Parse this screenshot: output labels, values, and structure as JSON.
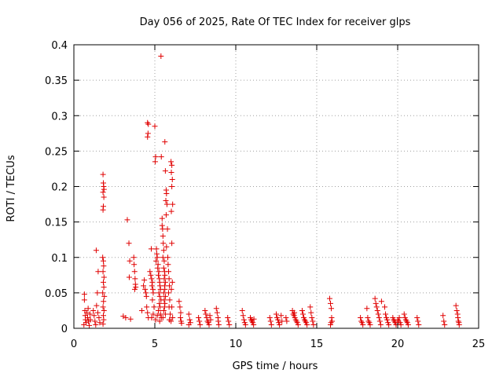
{
  "chart_data": {
    "type": "scatter",
    "title": "Day 056 of 2025, Rate Of TEC Index for receiver glps",
    "xlabel": "GPS time / hours",
    "ylabel": "ROTI / TECUs",
    "xlim": [
      0,
      25
    ],
    "ylim": [
      0,
      0.4
    ],
    "xticks": [
      0,
      5,
      10,
      15,
      20,
      25
    ],
    "yticks": [
      0,
      0.05,
      0.1,
      0.15,
      0.2,
      0.25,
      0.3,
      0.35,
      0.4
    ],
    "xtick_labels": [
      "0",
      "5",
      "10",
      "15",
      "20",
      "25"
    ],
    "ytick_labels": [
      "0",
      "0.05",
      "0.1",
      "0.15",
      "0.2",
      "0.25",
      "0.3",
      "0.35",
      "0.4"
    ],
    "grid": true,
    "marker": "+",
    "marker_color": "#e00000",
    "series": [
      {
        "name": "ROTI",
        "points": [
          [
            0.65,
            0.048
          ],
          [
            0.65,
            0.04
          ],
          [
            0.68,
            0.025
          ],
          [
            0.7,
            0.018
          ],
          [
            0.72,
            0.012
          ],
          [
            0.75,
            0.008
          ],
          [
            0.62,
            0.005
          ],
          [
            0.8,
            0.022
          ],
          [
            0.85,
            0.015
          ],
          [
            0.9,
            0.01
          ],
          [
            0.95,
            0.004
          ],
          [
            1.0,
            0.02
          ],
          [
            1.02,
            0.012
          ],
          [
            0.88,
            0.028
          ],
          [
            1.2,
            0.025
          ],
          [
            1.25,
            0.018
          ],
          [
            1.3,
            0.01
          ],
          [
            1.35,
            0.005
          ],
          [
            1.4,
            0.032
          ],
          [
            1.45,
            0.05
          ],
          [
            1.5,
            0.08
          ],
          [
            1.38,
            0.11
          ],
          [
            1.55,
            0.015
          ],
          [
            1.6,
            0.008
          ],
          [
            1.48,
            0.022
          ],
          [
            1.8,
            0.217
          ],
          [
            1.82,
            0.205
          ],
          [
            1.84,
            0.2
          ],
          [
            1.86,
            0.196
          ],
          [
            1.8,
            0.192
          ],
          [
            1.85,
            0.185
          ],
          [
            1.82,
            0.172
          ],
          [
            1.8,
            0.167
          ],
          [
            1.78,
            0.1
          ],
          [
            1.82,
            0.095
          ],
          [
            1.84,
            0.088
          ],
          [
            1.8,
            0.08
          ],
          [
            1.86,
            0.072
          ],
          [
            1.82,
            0.065
          ],
          [
            1.85,
            0.058
          ],
          [
            1.78,
            0.05
          ],
          [
            1.88,
            0.045
          ],
          [
            1.83,
            0.038
          ],
          [
            1.8,
            0.03
          ],
          [
            1.86,
            0.025
          ],
          [
            1.82,
            0.018
          ],
          [
            1.84,
            0.012
          ],
          [
            1.8,
            0.006
          ],
          [
            3.05,
            0.017
          ],
          [
            3.2,
            0.015
          ],
          [
            3.3,
            0.153
          ],
          [
            3.4,
            0.12
          ],
          [
            3.45,
            0.095
          ],
          [
            3.42,
            0.072
          ],
          [
            3.5,
            0.013
          ],
          [
            3.7,
            0.1
          ],
          [
            3.72,
            0.09
          ],
          [
            3.75,
            0.08
          ],
          [
            3.78,
            0.07
          ],
          [
            3.8,
            0.062
          ],
          [
            3.76,
            0.055
          ],
          [
            3.82,
            0.058
          ],
          [
            4.2,
            0.025
          ],
          [
            4.3,
            0.06
          ],
          [
            4.35,
            0.068
          ],
          [
            4.4,
            0.055
          ],
          [
            4.45,
            0.05
          ],
          [
            4.48,
            0.045
          ],
          [
            4.5,
            0.03
          ],
          [
            4.55,
            0.022
          ],
          [
            4.6,
            0.015
          ],
          [
            4.55,
            0.29
          ],
          [
            4.6,
            0.288
          ],
          [
            4.58,
            0.275
          ],
          [
            4.55,
            0.27
          ],
          [
            4.7,
            0.08
          ],
          [
            4.75,
            0.075
          ],
          [
            4.8,
            0.07
          ],
          [
            4.85,
            0.065
          ],
          [
            4.82,
            0.06
          ],
          [
            4.88,
            0.055
          ],
          [
            4.78,
            0.112
          ],
          [
            4.9,
            0.05
          ],
          [
            4.85,
            0.04
          ],
          [
            4.95,
            0.03
          ],
          [
            4.9,
            0.02
          ],
          [
            4.8,
            0.015
          ],
          [
            5.0,
            0.285
          ],
          [
            5.05,
            0.242
          ],
          [
            5.02,
            0.235
          ],
          [
            5.1,
            0.112
          ],
          [
            5.12,
            0.105
          ],
          [
            5.15,
            0.1
          ],
          [
            5.08,
            0.095
          ],
          [
            5.2,
            0.09
          ],
          [
            5.18,
            0.085
          ],
          [
            5.25,
            0.08
          ],
          [
            5.22,
            0.075
          ],
          [
            5.28,
            0.07
          ],
          [
            5.3,
            0.065
          ],
          [
            5.32,
            0.06
          ],
          [
            5.35,
            0.055
          ],
          [
            5.25,
            0.05
          ],
          [
            5.3,
            0.045
          ],
          [
            5.38,
            0.04
          ],
          [
            5.28,
            0.035
          ],
          [
            5.32,
            0.03
          ],
          [
            5.22,
            0.025
          ],
          [
            5.35,
            0.02
          ],
          [
            5.4,
            0.015
          ],
          [
            5.3,
            0.01
          ],
          [
            5.15,
            0.018
          ],
          [
            5.05,
            0.012
          ],
          [
            5.38,
            0.384
          ],
          [
            5.4,
            0.242
          ],
          [
            5.45,
            0.155
          ],
          [
            5.45,
            0.145
          ],
          [
            5.48,
            0.14
          ],
          [
            5.5,
            0.13
          ],
          [
            5.52,
            0.12
          ],
          [
            5.55,
            0.11
          ],
          [
            5.5,
            0.1
          ],
          [
            5.58,
            0.095
          ],
          [
            5.55,
            0.085
          ],
          [
            5.6,
            0.08
          ],
          [
            5.62,
            0.075
          ],
          [
            5.58,
            0.07
          ],
          [
            5.65,
            0.065
          ],
          [
            5.6,
            0.06
          ],
          [
            5.62,
            0.055
          ],
          [
            5.55,
            0.05
          ],
          [
            5.65,
            0.045
          ],
          [
            5.58,
            0.04
          ],
          [
            5.62,
            0.035
          ],
          [
            5.6,
            0.03
          ],
          [
            5.55,
            0.025
          ],
          [
            5.65,
            0.02
          ],
          [
            5.5,
            0.015
          ],
          [
            5.62,
            0.263
          ],
          [
            5.65,
            0.222
          ],
          [
            5.7,
            0.195
          ],
          [
            5.72,
            0.19
          ],
          [
            5.68,
            0.18
          ],
          [
            5.75,
            0.175
          ],
          [
            5.7,
            0.16
          ],
          [
            5.78,
            0.14
          ],
          [
            5.72,
            0.115
          ],
          [
            5.8,
            0.1
          ],
          [
            5.82,
            0.09
          ],
          [
            5.85,
            0.08
          ],
          [
            5.88,
            0.07
          ],
          [
            5.9,
            0.06
          ],
          [
            5.85,
            0.05
          ],
          [
            5.92,
            0.04
          ],
          [
            5.88,
            0.03
          ],
          [
            5.95,
            0.02
          ],
          [
            5.9,
            0.012
          ],
          [
            6.0,
            0.235
          ],
          [
            6.05,
            0.23
          ],
          [
            6.02,
            0.22
          ],
          [
            6.08,
            0.21
          ],
          [
            6.05,
            0.2
          ],
          [
            6.1,
            0.175
          ],
          [
            6.02,
            0.165
          ],
          [
            6.05,
            0.12
          ],
          [
            6.08,
            0.065
          ],
          [
            6.02,
            0.055
          ],
          [
            6.05,
            0.03
          ],
          [
            6.1,
            0.015
          ],
          [
            6.0,
            0.01
          ],
          [
            6.5,
            0.038
          ],
          [
            6.55,
            0.03
          ],
          [
            6.6,
            0.022
          ],
          [
            6.58,
            0.015
          ],
          [
            6.62,
            0.01
          ],
          [
            6.65,
            0.007
          ],
          [
            7.1,
            0.02
          ],
          [
            7.15,
            0.012
          ],
          [
            7.2,
            0.008
          ],
          [
            7.1,
            0.005
          ],
          [
            7.7,
            0.015
          ],
          [
            7.75,
            0.01
          ],
          [
            7.8,
            0.005
          ],
          [
            8.1,
            0.025
          ],
          [
            8.15,
            0.02
          ],
          [
            8.2,
            0.015
          ],
          [
            8.25,
            0.01
          ],
          [
            8.3,
            0.008
          ],
          [
            8.35,
            0.005
          ],
          [
            8.4,
            0.018
          ],
          [
            8.45,
            0.012
          ],
          [
            8.8,
            0.028
          ],
          [
            8.85,
            0.022
          ],
          [
            8.9,
            0.015
          ],
          [
            8.92,
            0.01
          ],
          [
            8.95,
            0.005
          ],
          [
            9.5,
            0.015
          ],
          [
            9.55,
            0.01
          ],
          [
            9.6,
            0.005
          ],
          [
            10.4,
            0.025
          ],
          [
            10.45,
            0.018
          ],
          [
            10.5,
            0.012
          ],
          [
            10.55,
            0.008
          ],
          [
            10.6,
            0.005
          ],
          [
            10.9,
            0.015
          ],
          [
            10.95,
            0.012
          ],
          [
            11.0,
            0.01
          ],
          [
            11.05,
            0.008
          ],
          [
            11.1,
            0.005
          ],
          [
            11.12,
            0.013
          ],
          [
            12.1,
            0.015
          ],
          [
            12.15,
            0.01
          ],
          [
            12.2,
            0.005
          ],
          [
            12.5,
            0.02
          ],
          [
            12.55,
            0.015
          ],
          [
            12.6,
            0.012
          ],
          [
            12.65,
            0.008
          ],
          [
            12.7,
            0.005
          ],
          [
            12.8,
            0.018
          ],
          [
            12.85,
            0.01
          ],
          [
            13.1,
            0.015
          ],
          [
            13.15,
            0.01
          ],
          [
            13.5,
            0.025
          ],
          [
            13.55,
            0.02
          ],
          [
            13.6,
            0.018
          ],
          [
            13.65,
            0.015
          ],
          [
            13.7,
            0.012
          ],
          [
            13.75,
            0.01
          ],
          [
            13.8,
            0.008
          ],
          [
            13.85,
            0.005
          ],
          [
            13.62,
            0.022
          ],
          [
            14.1,
            0.025
          ],
          [
            14.15,
            0.02
          ],
          [
            14.2,
            0.015
          ],
          [
            14.25,
            0.012
          ],
          [
            14.3,
            0.01
          ],
          [
            14.35,
            0.008
          ],
          [
            14.4,
            0.005
          ],
          [
            14.6,
            0.03
          ],
          [
            14.65,
            0.022
          ],
          [
            14.7,
            0.015
          ],
          [
            14.75,
            0.01
          ],
          [
            14.8,
            0.005
          ],
          [
            15.8,
            0.042
          ],
          [
            15.85,
            0.035
          ],
          [
            15.9,
            0.028
          ],
          [
            15.92,
            0.015
          ],
          [
            15.95,
            0.01
          ],
          [
            15.88,
            0.008
          ],
          [
            15.85,
            0.005
          ],
          [
            17.7,
            0.015
          ],
          [
            17.75,
            0.01
          ],
          [
            17.8,
            0.008
          ],
          [
            17.85,
            0.005
          ],
          [
            18.1,
            0.028
          ],
          [
            18.15,
            0.015
          ],
          [
            18.2,
            0.01
          ],
          [
            18.25,
            0.008
          ],
          [
            18.3,
            0.005
          ],
          [
            18.6,
            0.042
          ],
          [
            18.65,
            0.035
          ],
          [
            18.7,
            0.03
          ],
          [
            18.75,
            0.025
          ],
          [
            18.8,
            0.02
          ],
          [
            18.85,
            0.015
          ],
          [
            18.9,
            0.01
          ],
          [
            18.95,
            0.005
          ],
          [
            19.0,
            0.038
          ],
          [
            19.2,
            0.03
          ],
          [
            19.25,
            0.02
          ],
          [
            19.3,
            0.015
          ],
          [
            19.35,
            0.012
          ],
          [
            19.4,
            0.008
          ],
          [
            19.45,
            0.005
          ],
          [
            19.7,
            0.015
          ],
          [
            19.75,
            0.012
          ],
          [
            19.8,
            0.01
          ],
          [
            19.85,
            0.008
          ],
          [
            19.9,
            0.005
          ],
          [
            20.0,
            0.012
          ],
          [
            20.05,
            0.01
          ],
          [
            20.1,
            0.015
          ],
          [
            20.15,
            0.008
          ],
          [
            20.2,
            0.005
          ],
          [
            20.4,
            0.02
          ],
          [
            20.45,
            0.015
          ],
          [
            20.5,
            0.012
          ],
          [
            20.55,
            0.01
          ],
          [
            20.6,
            0.008
          ],
          [
            20.65,
            0.005
          ],
          [
            21.2,
            0.015
          ],
          [
            21.25,
            0.01
          ],
          [
            21.3,
            0.005
          ],
          [
            22.8,
            0.018
          ],
          [
            22.85,
            0.01
          ],
          [
            22.9,
            0.005
          ],
          [
            23.6,
            0.032
          ],
          [
            23.65,
            0.025
          ],
          [
            23.7,
            0.02
          ],
          [
            23.72,
            0.015
          ],
          [
            23.75,
            0.01
          ],
          [
            23.78,
            0.008
          ],
          [
            23.8,
            0.005
          ]
        ]
      }
    ]
  }
}
